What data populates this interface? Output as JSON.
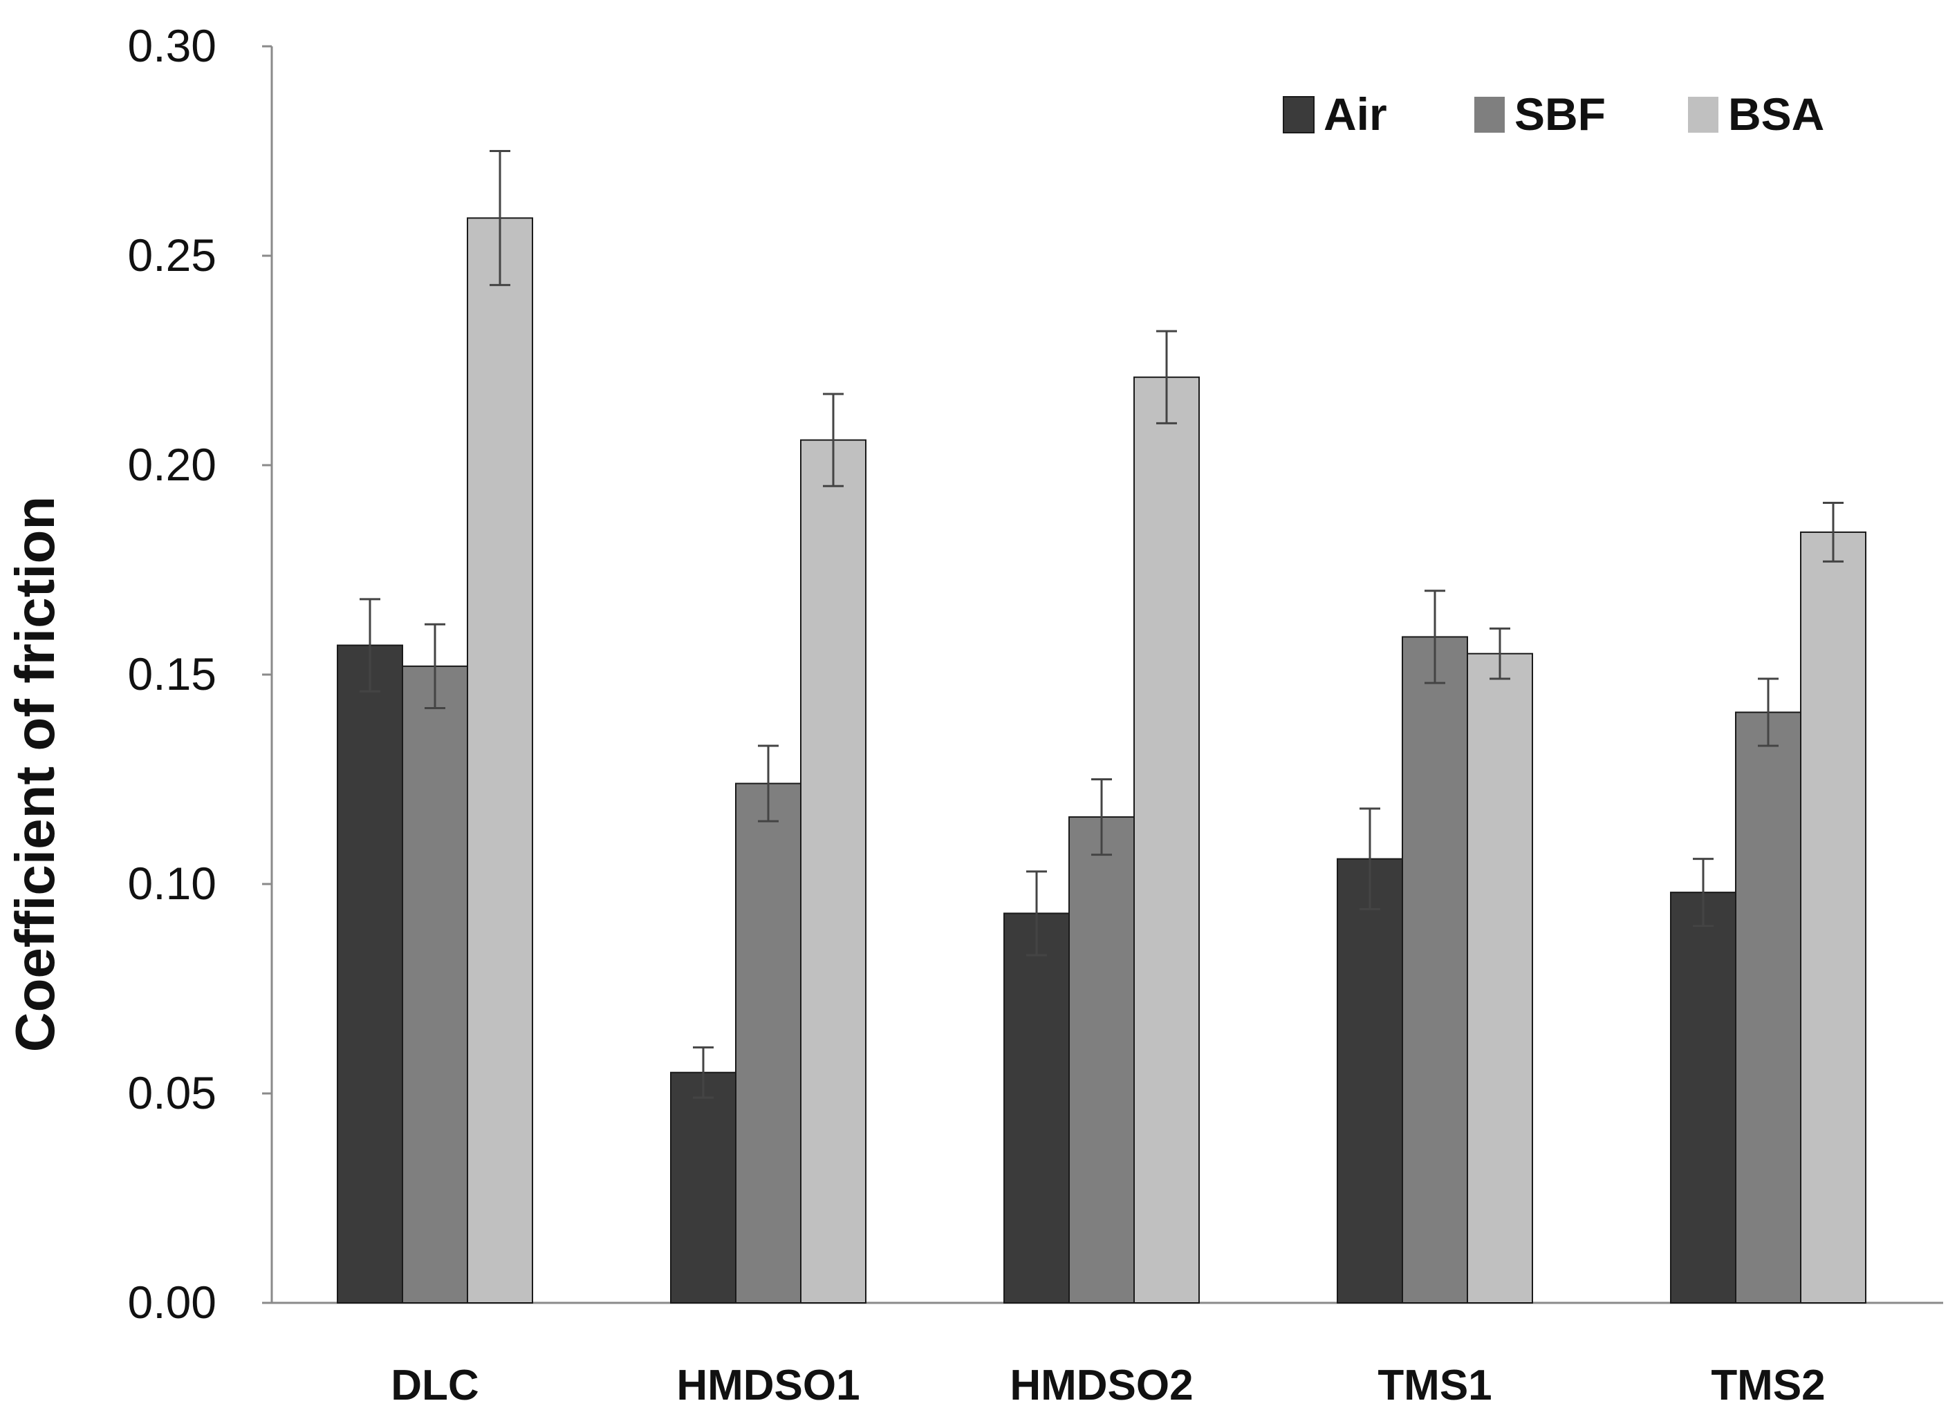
{
  "chart_data": {
    "type": "bar",
    "title": "",
    "xlabel": "",
    "ylabel": "Coefficient of friction",
    "ylim": [
      0,
      0.3
    ],
    "yticks": [
      "0.00",
      "0.05",
      "0.10",
      "0.15",
      "0.20",
      "0.25",
      "0.30"
    ],
    "ytick_values": [
      0,
      0.05,
      0.1,
      0.15,
      0.2,
      0.25,
      0.3
    ],
    "grid": false,
    "legend_position": "top-right",
    "categories": [
      "DLC",
      "HMDSO1",
      "HMDSO2",
      "TMS1",
      "TMS2"
    ],
    "series": [
      {
        "name": "Air",
        "color": "#3b3b3b",
        "values": [
          0.157,
          0.055,
          0.093,
          0.106,
          0.098
        ],
        "errors": [
          0.011,
          0.006,
          0.01,
          0.012,
          0.008
        ]
      },
      {
        "name": "SBF",
        "color": "#7f7f7f",
        "values": [
          0.152,
          0.124,
          0.116,
          0.159,
          0.141
        ],
        "errors": [
          0.01,
          0.009,
          0.009,
          0.011,
          0.008
        ]
      },
      {
        "name": "BSA",
        "color": "#c0c0c0",
        "values": [
          0.259,
          0.206,
          0.221,
          0.155,
          0.184
        ],
        "errors": [
          0.016,
          0.011,
          0.011,
          0.006,
          0.007
        ]
      }
    ]
  }
}
